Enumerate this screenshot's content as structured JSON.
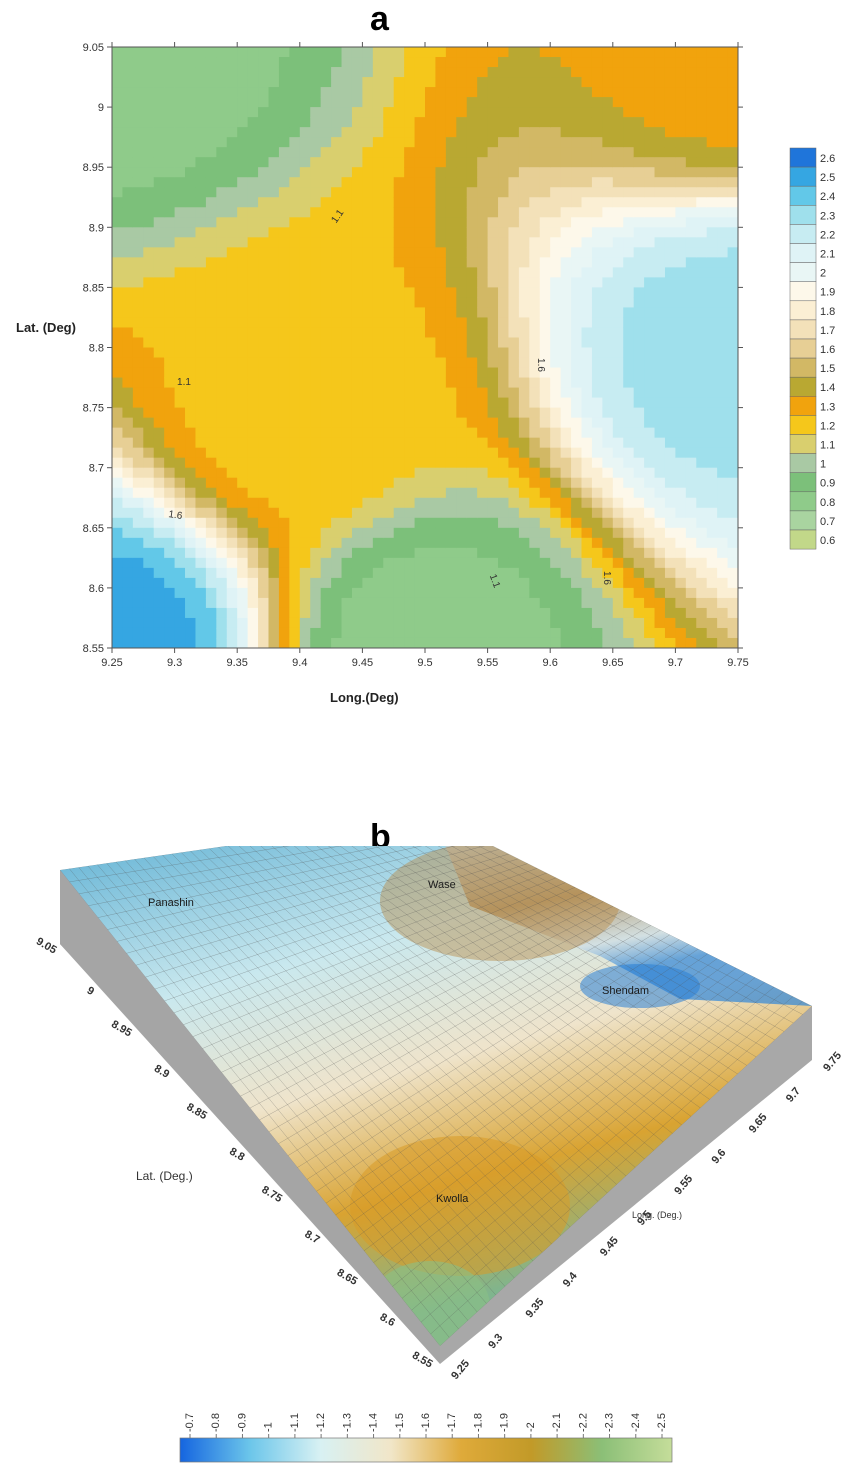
{
  "panels": {
    "a": {
      "label": "a"
    },
    "b": {
      "label": "b"
    }
  },
  "chart_data": [
    {
      "panel": "a",
      "type": "contour",
      "xlabel": "Long.(Deg)",
      "ylabel": "Lat. (Deg)",
      "xlim": [
        9.25,
        9.75
      ],
      "ylim": [
        8.55,
        9.05
      ],
      "xticks": [
        "9.25",
        "9.3",
        "9.35",
        "9.4",
        "9.45",
        "9.5",
        "9.55",
        "9.6",
        "9.65",
        "9.7",
        "9.75"
      ],
      "yticks": [
        "8.55",
        "8.6",
        "8.65",
        "8.7",
        "8.75",
        "8.8",
        "8.85",
        "8.9",
        "8.95",
        "9",
        "9.05"
      ],
      "contour_labels": [
        "1.1",
        "1.1",
        "1.6",
        "1.1",
        "1.6",
        "1.6"
      ],
      "colorbar": {
        "levels": [
          "0.6",
          "0.7",
          "0.8",
          "0.9",
          "1",
          "1.1",
          "1.2",
          "1.3",
          "1.4",
          "1.5",
          "1.6",
          "1.7",
          "1.8",
          "1.9",
          "2",
          "2.1",
          "2.2",
          "2.3",
          "2.4",
          "2.5",
          "2.6"
        ],
        "colors": [
          "#c2d889",
          "#a9d4a0",
          "#8fcb8a",
          "#7cc07a",
          "#a9c9a4",
          "#d9cf6e",
          "#f5c71b",
          "#f1a30d",
          "#b9a832",
          "#d2b865",
          "#e7cf95",
          "#f3e1b9",
          "#fbefd4",
          "#fdf8ea",
          "#e9f6f5",
          "#dff3f6",
          "#c7ecf2",
          "#9fe0ec",
          "#62c8e8",
          "#35a6e2",
          "#1f75da"
        ]
      },
      "surface_values": [
        {
          "x": 9.25,
          "y": 9.05,
          "v": 0.8
        },
        {
          "x": 9.25,
          "y": 8.55,
          "v": 2.5
        },
        {
          "x": 9.5,
          "y": 8.55,
          "v": 0.8
        },
        {
          "x": 9.75,
          "y": 8.8,
          "v": 2.3
        },
        {
          "x": 9.75,
          "y": 9.05,
          "v": 1.3
        },
        {
          "x": 9.4,
          "y": 8.75,
          "v": 1.2
        }
      ]
    },
    {
      "panel": "b",
      "type": "surface3d",
      "xlabel": "Long. (Deg.)",
      "ylabel": "Lat. (Deg.)",
      "lat_ticks": [
        "8.55",
        "8.6",
        "8.65",
        "8.7",
        "8.75",
        "8.8",
        "8.85",
        "8.9",
        "8.95",
        "9",
        "9.05"
      ],
      "long_ticks": [
        "9.25",
        "9.3",
        "9.35",
        "9.4",
        "9.45",
        "9.5",
        "9.55",
        "9.6",
        "9.65",
        "9.7",
        "9.75"
      ],
      "annotations": [
        "Panashin",
        "Wase",
        "Shendam",
        "Kwolla"
      ],
      "colorbar": {
        "labels": [
          "-0.7",
          "-0.8",
          "-0.9",
          "-1",
          "-1.1",
          "-1.2",
          "-1.3",
          "-1.4",
          "-1.5",
          "-1.6",
          "-1.7",
          "-1.8",
          "-1.9",
          "-2",
          "-2.1",
          "-2.2",
          "-2.3",
          "-2.4",
          "-2.5"
        ],
        "gradient": [
          "#1565e0",
          "#6cc6ea",
          "#d8f1f3",
          "#f1e6c8",
          "#dfaa3a",
          "#c29a28",
          "#8bbf77",
          "#c5dd9a"
        ]
      }
    }
  ]
}
